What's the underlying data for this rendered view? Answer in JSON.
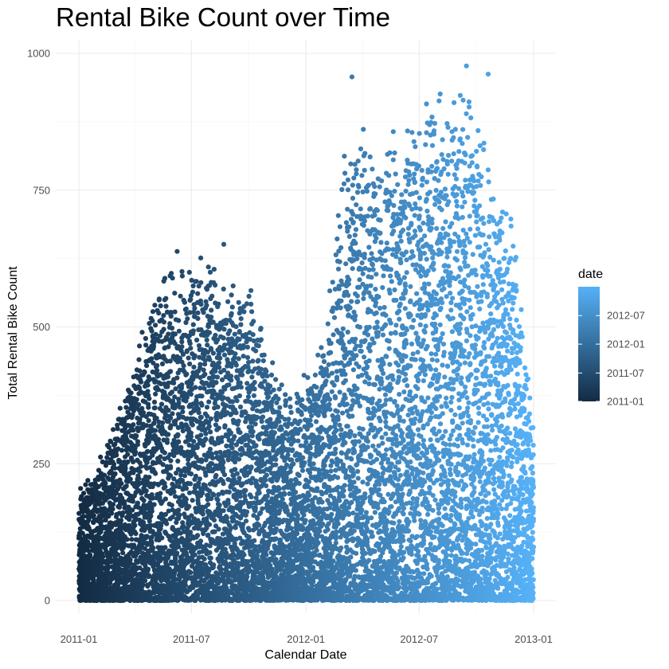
{
  "chart_data": {
    "type": "scatter",
    "title": "Rental Bike Count over Time",
    "xlabel": "Calendar Date",
    "ylabel": "Total Rental Bike Count",
    "x_range": [
      "2011-01-01",
      "2013-01-01"
    ],
    "ylim": [
      0,
      1000
    ],
    "x_ticks": [
      "2011-01",
      "2011-07",
      "2012-01",
      "2012-07",
      "2013-01"
    ],
    "y_ticks": [
      0,
      250,
      500,
      750,
      1000
    ],
    "grid": true,
    "legend": {
      "title": "date",
      "placement": "right",
      "labels": [
        "2012-07",
        "2012-01",
        "2011-07",
        "2011-01"
      ],
      "color_low": "#132B43",
      "color_high": "#56B1F7"
    },
    "daily_max_envelope": {
      "x": [
        "2011-01-01",
        "2011-02-01",
        "2011-03-01",
        "2011-04-01",
        "2011-05-01",
        "2011-06-01",
        "2011-07-01",
        "2011-08-01",
        "2011-09-01",
        "2011-10-01",
        "2011-11-01",
        "2011-12-01",
        "2012-01-01",
        "2012-02-01",
        "2012-03-01",
        "2012-04-01",
        "2012-05-01",
        "2012-06-01",
        "2012-07-01",
        "2012-08-01",
        "2012-09-01",
        "2012-10-01",
        "2012-11-01",
        "2012-12-01",
        "2012-12-31"
      ],
      "y": [
        210,
        260,
        330,
        460,
        590,
        620,
        620,
        640,
        600,
        620,
        480,
        380,
        420,
        500,
        830,
        880,
        870,
        900,
        920,
        950,
        975,
        960,
        760,
        700,
        330
      ]
    },
    "notable_points": [
      {
        "x": "2012-03-15",
        "y": 957
      },
      {
        "x": "2012-09-15",
        "y": 977
      },
      {
        "x": "2012-10-20",
        "y": 962
      },
      {
        "x": "2011-06-08",
        "y": 638
      },
      {
        "x": "2011-08-22",
        "y": 651
      },
      {
        "x": "2012-12-31",
        "y": 316
      }
    ],
    "point_color_encodes": "date"
  }
}
